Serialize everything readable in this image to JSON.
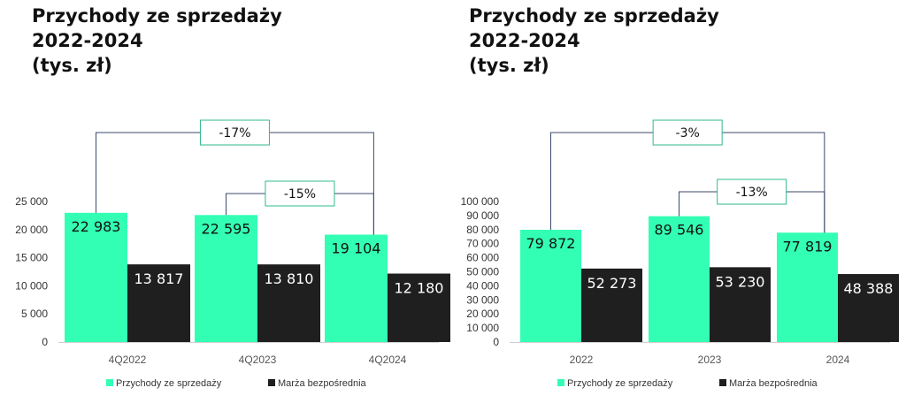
{
  "colors": {
    "revenue": "#33ffb4",
    "margin": "#1f1f1f",
    "bracket": "#3b4a6b",
    "box": "#2fb88f"
  },
  "chart_data": [
    {
      "type": "bar",
      "title": [
        "Przychody ze sprzedaży",
        "2022-2024",
        "(tys. zł)"
      ],
      "categories": [
        "4Q2022",
        "4Q2023",
        "4Q2024"
      ],
      "ylim": [
        0,
        25000
      ],
      "yticks": [
        0,
        5000,
        10000,
        15000,
        20000,
        25000
      ],
      "ytick_labels": [
        "0",
        "5 000",
        "10 000",
        "15 000",
        "20 000",
        "25 000"
      ],
      "series": [
        {
          "name": "Przychody ze sprzedaży",
          "values": [
            22983,
            22595,
            19104
          ],
          "labels": [
            "22 983",
            "22 595",
            "19 104"
          ]
        },
        {
          "name": "Marża bezpośrednia",
          "values": [
            13817,
            13810,
            12180
          ],
          "labels": [
            "13 817",
            "13 810",
            "12 180"
          ]
        }
      ],
      "annotations": [
        {
          "from": 0,
          "to": 2,
          "label": "-17%"
        },
        {
          "from": 1,
          "to": 2,
          "label": "-15%"
        }
      ]
    },
    {
      "type": "bar",
      "title": [
        "Przychody ze sprzedaży",
        "2022-2024",
        "(tys. zł)"
      ],
      "categories": [
        "2022",
        "2023",
        "2024"
      ],
      "ylim": [
        0,
        100000
      ],
      "yticks": [
        0,
        10000,
        20000,
        30000,
        40000,
        50000,
        60000,
        70000,
        80000,
        90000,
        100000
      ],
      "ytick_labels": [
        "0",
        "10 000",
        "20 000",
        "30 000",
        "40 000",
        "50 000",
        "60 000",
        "70 000",
        "80 000",
        "90 000",
        "100 000"
      ],
      "series": [
        {
          "name": "Przychody ze sprzedaży",
          "values": [
            79872,
            89546,
            77819
          ],
          "labels": [
            "79 872",
            "89 546",
            "77 819"
          ]
        },
        {
          "name": "Marża bezpośrednia",
          "values": [
            52273,
            53230,
            48388
          ],
          "labels": [
            "52 273",
            "53 230",
            "48 388"
          ]
        }
      ],
      "annotations": [
        {
          "from": 0,
          "to": 2,
          "label": "-3%"
        },
        {
          "from": 1,
          "to": 2,
          "label": "-13%"
        }
      ]
    }
  ]
}
